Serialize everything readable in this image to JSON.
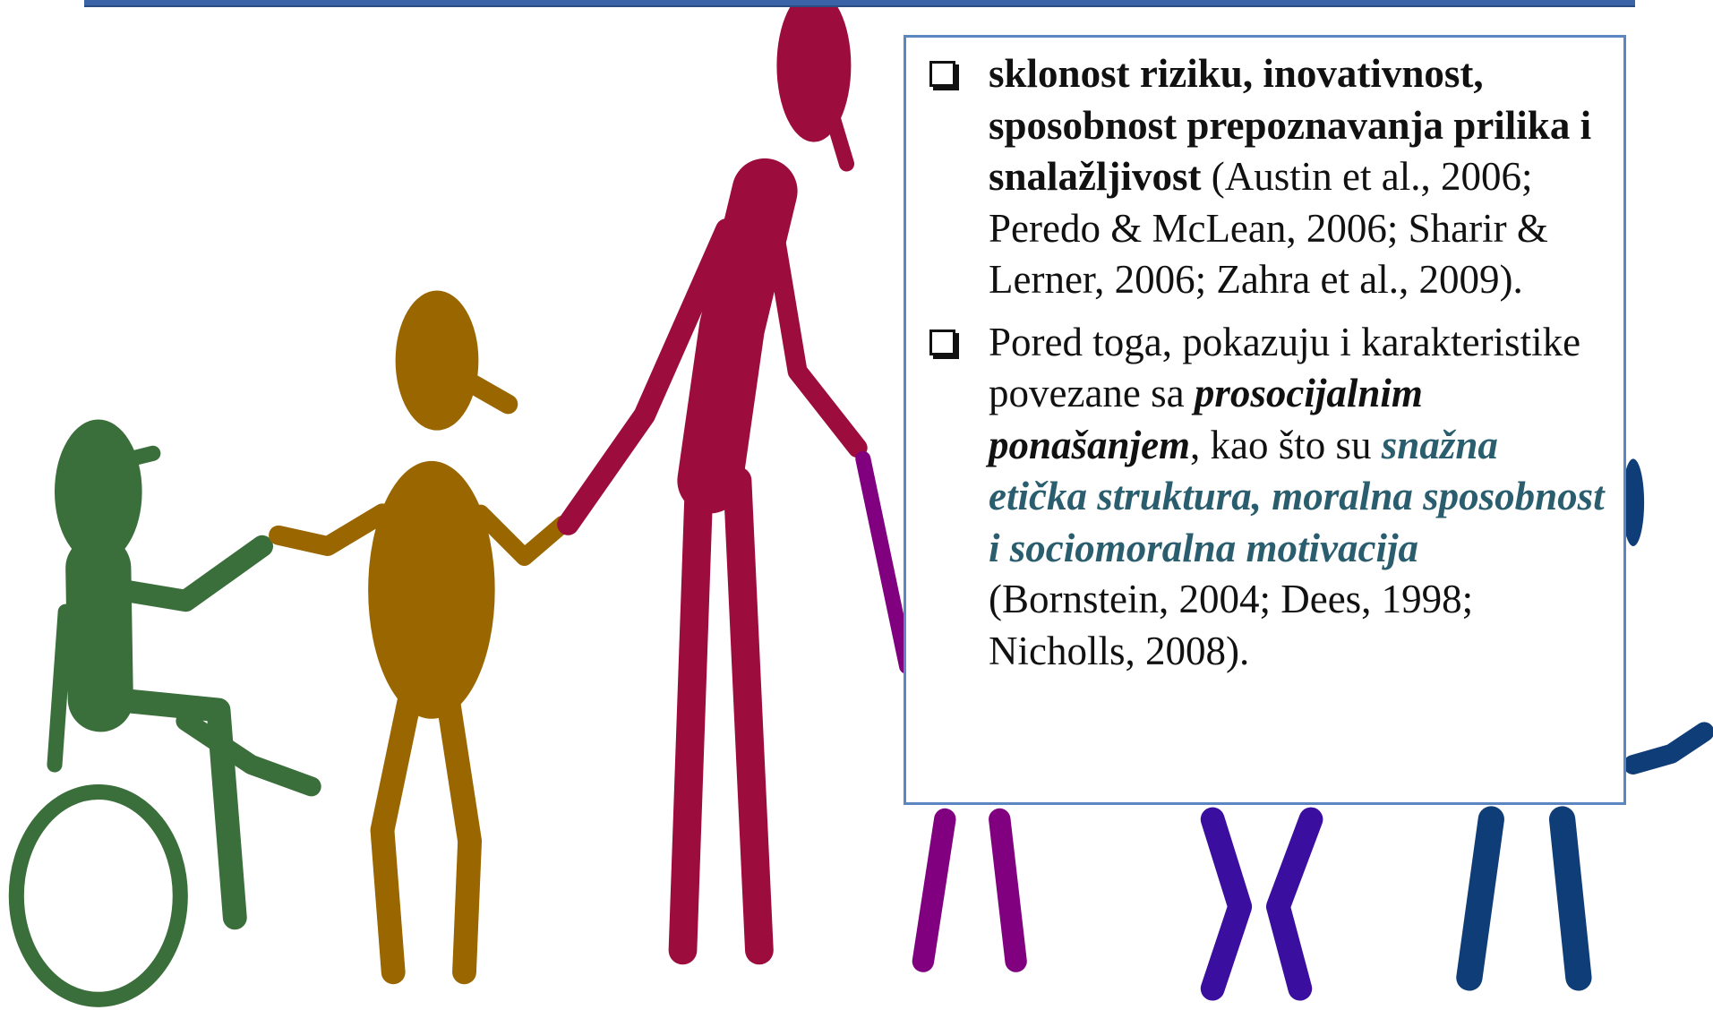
{
  "slide": {
    "bullets": [
      {
        "runs": [
          {
            "text": "sklonost riziku, inovativnost, sposobnost prepoznavanja prilika i snalažljivost"
          },
          {
            "text": " (Austin et al., 2006; Peredo & McLean, 2006; Sharir & Lerner, 2006; Zahra et al., 2009)."
          }
        ]
      },
      {
        "runs": [
          {
            "text": "Pored toga, pokazuju i karakteristike povezane sa "
          },
          {
            "text": "prosocijalnim ponašanjem"
          },
          {
            "text": ", kao što su "
          },
          {
            "text": "snažna etička struktura, moralna sposobnost i sociomoralna motivacija"
          },
          {
            "text": " (Bornstein, 2004; Dees, 1998; Nicholls, 2008)."
          }
        ]
      }
    ]
  }
}
